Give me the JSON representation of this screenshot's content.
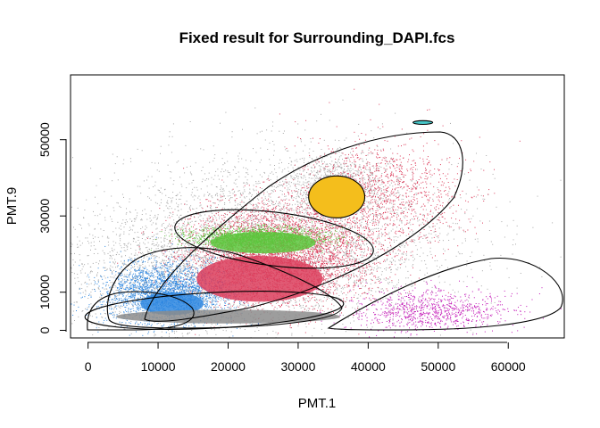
{
  "chart_data": {
    "type": "scatter",
    "title": "Fixed result for Surrounding_DAPI.fcs",
    "xlabel": "PMT.1",
    "ylabel": "PMT.9",
    "xlim": [
      -2500,
      68000
    ],
    "ylim": [
      -2000,
      67000
    ],
    "x_ticks": [
      0,
      10000,
      20000,
      30000,
      40000,
      50000,
      60000
    ],
    "x_tick_labels": [
      "0",
      "10000",
      "20000",
      "30000",
      "40000",
      "50000",
      "60000"
    ],
    "y_ticks": [
      0,
      10000,
      30000,
      50000
    ],
    "y_tick_labels": [
      "0",
      "10000",
      "30000",
      "50000"
    ],
    "grid": false,
    "colors": {
      "background_events": "#a8a8a8",
      "gray_core": "#8c8c8c",
      "blue": "#2e87e0",
      "red": "#dc3d5c",
      "green": "#5cc63c",
      "yellow": "#f4be1c",
      "magenta": "#c216b6",
      "cyan": "#46c6c8"
    },
    "series": [
      {
        "color": "#a8a8a8",
        "cx": 28000,
        "cy": 24000,
        "sx": 12500,
        "sy": 11000,
        "n": 4000
      },
      {
        "color": "#a8a8a8",
        "cx": 36000,
        "cy": 39000,
        "sx": 3500,
        "sy": 3500,
        "n": 700
      },
      {
        "color": "#a8a8a8",
        "cx": 12000,
        "cy": 14000,
        "sx": 8000,
        "sy": 8000,
        "n": 1500
      },
      {
        "color": "#dc3d5c",
        "cx": 27000,
        "cy": 20000,
        "sx": 6500,
        "sy": 6500,
        "n": 4500
      },
      {
        "color": "#dc3d5c",
        "cx": 42000,
        "cy": 36000,
        "sx": 6000,
        "sy": 7000,
        "n": 1200
      },
      {
        "color": "#2e87e0",
        "cx": 11000,
        "cy": 10000,
        "sx": 4500,
        "sy": 4000,
        "n": 2500
      },
      {
        "color": "#c216b6",
        "cx": 49000,
        "cy": 5000,
        "sx": 5500,
        "sy": 2800,
        "n": 900
      },
      {
        "color": "#5cc63c",
        "cx": 24000,
        "cy": 24500,
        "sx": 5000,
        "sy": 1400,
        "n": 1500
      }
    ],
    "gates": [
      {
        "cx": 20000,
        "cy": 3600,
        "rx": 16000,
        "ry": 1800,
        "fill": "#8c8c8c"
      },
      {
        "cx": 12000,
        "cy": 7000,
        "rx": 4500,
        "ry": 3000,
        "fill": "#2e87e0"
      },
      {
        "cx": 24500,
        "cy": 13500,
        "rx": 9000,
        "ry": 6000,
        "fill": "#dc3d5c"
      },
      {
        "cx": 25000,
        "cy": 23000,
        "rx": 7500,
        "ry": 2800,
        "fill": "#5cc63c"
      },
      {
        "cx": 35500,
        "cy": 35000,
        "rx": 4000,
        "ry": 5500,
        "fill": "#f4be1c"
      },
      {
        "cx": 47800,
        "cy": 54500,
        "rx": 1400,
        "ry": 500,
        "fill": "#46c6c8"
      }
    ]
  }
}
